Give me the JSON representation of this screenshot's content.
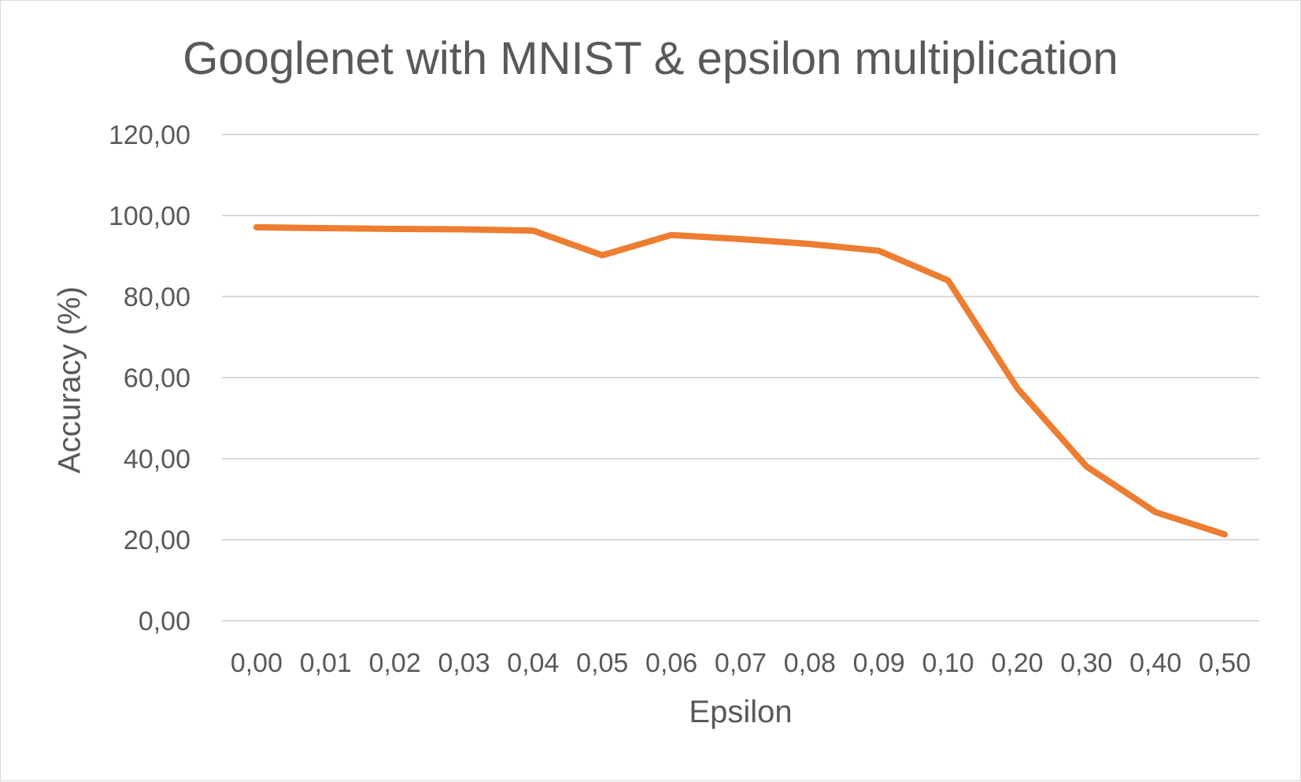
{
  "chart_data": {
    "type": "line",
    "title": "Googlenet with MNIST & epsilon multiplication",
    "xlabel": "Epsilon",
    "ylabel": "Accuracy (%)",
    "categories": [
      "0,00",
      "0,01",
      "0,02",
      "0,03",
      "0,04",
      "0,05",
      "0,06",
      "0,07",
      "0,08",
      "0,09",
      "0,10",
      "0,20",
      "0,30",
      "0,40",
      "0,50"
    ],
    "series": [
      {
        "values": [
          97.1,
          96.9,
          96.7,
          96.6,
          96.3,
          90.2,
          95.2,
          94.2,
          93.0,
          91.3,
          84.0,
          57.4,
          38.1,
          26.8,
          21.3
        ]
      }
    ],
    "ylim": [
      0,
      120
    ],
    "yticks": [
      "0,00",
      "20,00",
      "40,00",
      "60,00",
      "80,00",
      "100,00",
      "120,00"
    ],
    "grid": true,
    "legend": "none",
    "colors": {
      "line": "#ED7D31",
      "grid": "#d9d9d9",
      "text": "#595959"
    }
  }
}
